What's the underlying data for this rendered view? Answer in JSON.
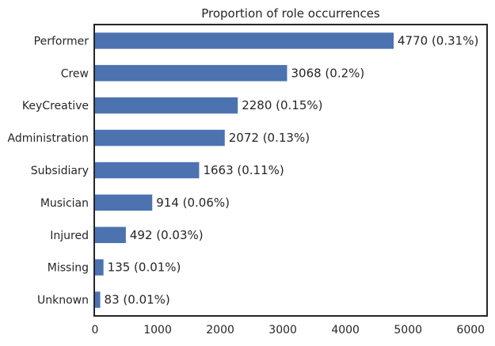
{
  "chart_data": {
    "type": "bar",
    "orientation": "horizontal",
    "title": "Proportion of role occurrences",
    "xlabel": "",
    "ylabel": "",
    "categories": [
      "Performer",
      "Crew",
      "KeyCreative",
      "Administration",
      "Subsidiary",
      "Musician",
      "Injured",
      "Missing",
      "Unknown"
    ],
    "values": [
      4770,
      3068,
      2280,
      2072,
      1663,
      914,
      492,
      135,
      83
    ],
    "bar_labels": [
      "4770 (0.31%)",
      "3068 (0.2%)",
      "2280 (0.15%)",
      "2072 (0.13%)",
      "1663 (0.11%)",
      "914 (0.06%)",
      "492 (0.03%)",
      "135 (0.01%)",
      "83 (0.01%)"
    ],
    "xlim": [
      0,
      6250
    ],
    "xticks": [
      0,
      1000,
      2000,
      3000,
      4000,
      5000,
      6000
    ],
    "grid": false,
    "bar_color": "#4c72b0"
  }
}
